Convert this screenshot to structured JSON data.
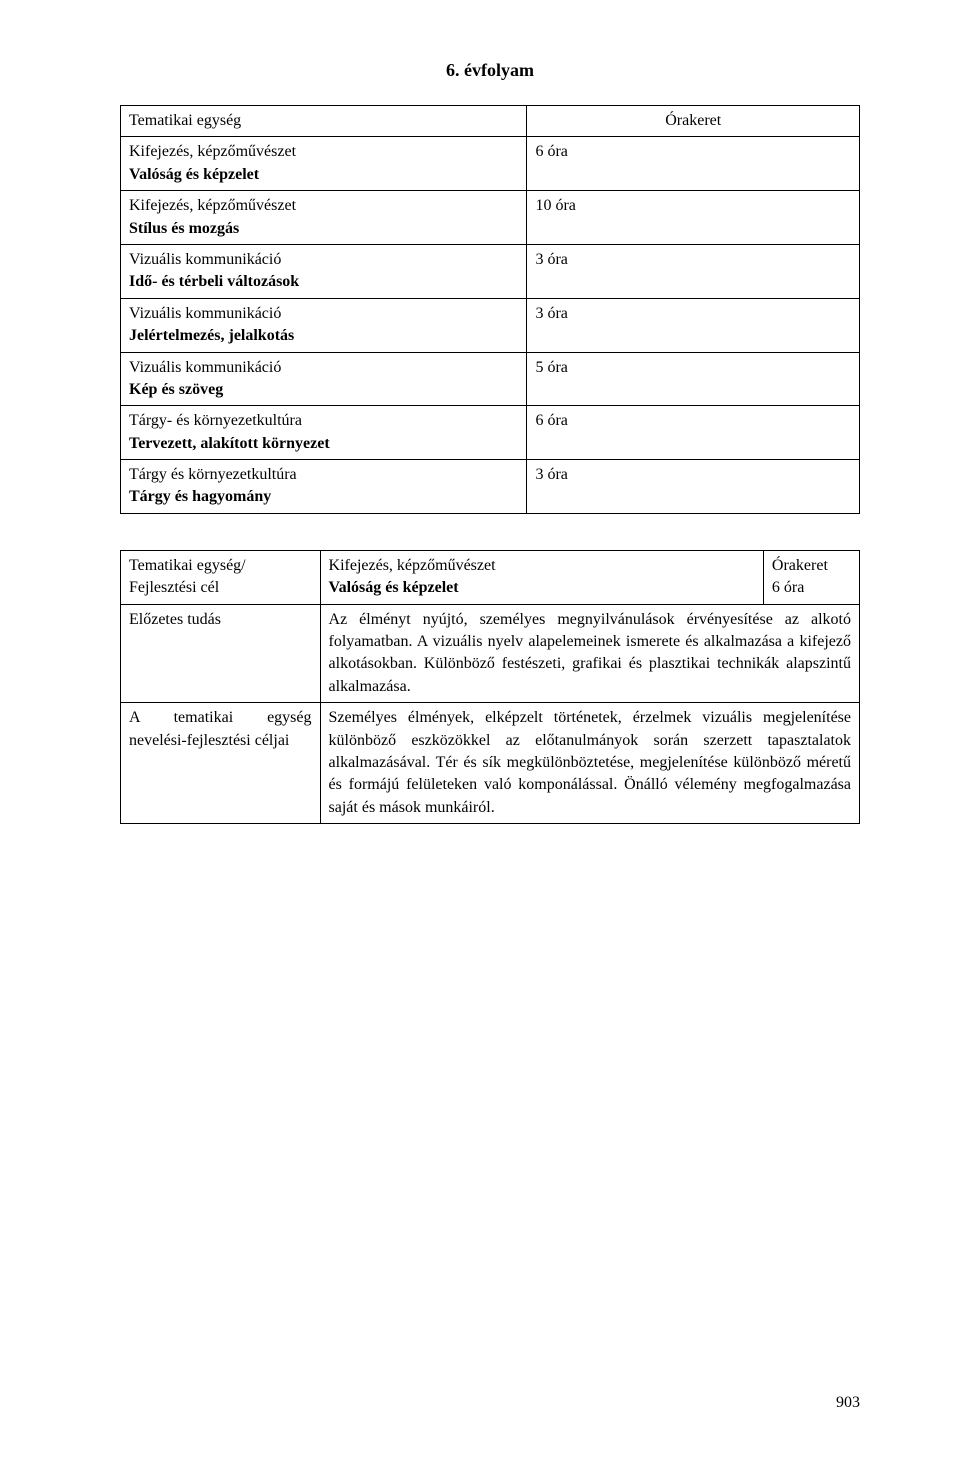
{
  "title": "6. évfolyam",
  "upper": {
    "header_left": "Tematikai egység",
    "header_right": "Órakeret",
    "rows": [
      {
        "l1": "Kifejezés, képzőművészet",
        "l2": "Valóság és képzelet",
        "r": "6 óra"
      },
      {
        "l1": "Kifejezés, képzőművészet",
        "l2": "Stílus és mozgás",
        "r": "10 óra"
      },
      {
        "l1": "Vizuális kommunikáció",
        "l2": "Idő- és térbeli változások",
        "r": "3 óra"
      },
      {
        "l1": "Vizuális kommunikáció",
        "l2": "Jelértelmezés, jelalkotás",
        "r": "3 óra"
      },
      {
        "l1": "Vizuális kommunikáció",
        "l2": "Kép és szöveg",
        "r": "5 óra"
      },
      {
        "l1": "Tárgy- és környezetkultúra",
        "l2": "Tervezett, alakított környezet",
        "r": "6 óra"
      },
      {
        "l1": "Tárgy és környezetkultúra",
        "l2": "Tárgy és hagyomány",
        "r": "3 óra"
      }
    ]
  },
  "lower": {
    "row1": {
      "c1a": "Tematikai egység/",
      "c1b": "Fejlesztési cél",
      "c2a": "Kifejezés, képzőművészet",
      "c2b": "Valóság és képzelet",
      "c3a": "Órakeret",
      "c3b": " 6 óra"
    },
    "row2": {
      "c1": "Előzetes tudás",
      "c2": "Az élményt nyújtó, személyes megnyilvánulások érvényesítése az alkotó folyamatban. A vizuális nyelv alapelemeinek ismerete és alkalmazása a kifejező alkotásokban. Különböző festészeti, grafikai és plasztikai technikák alapszintű alkalmazása."
    },
    "row3": {
      "c1": "A tematikai egység nevelési-fejlesztési céljai",
      "c2": "Személyes élmények, elképzelt történetek, érzelmek vizuális megjelenítése különböző eszközökkel az előtanulmányok során szerzett tapasztalatok alkalmazásával. Tér és sík megkülönböztetése, megjelenítése különböző méretű és formájú felületeken való komponálással. Önálló vélemény megfogalmazása saját és mások munkáiról."
    }
  },
  "page_number": "903"
}
